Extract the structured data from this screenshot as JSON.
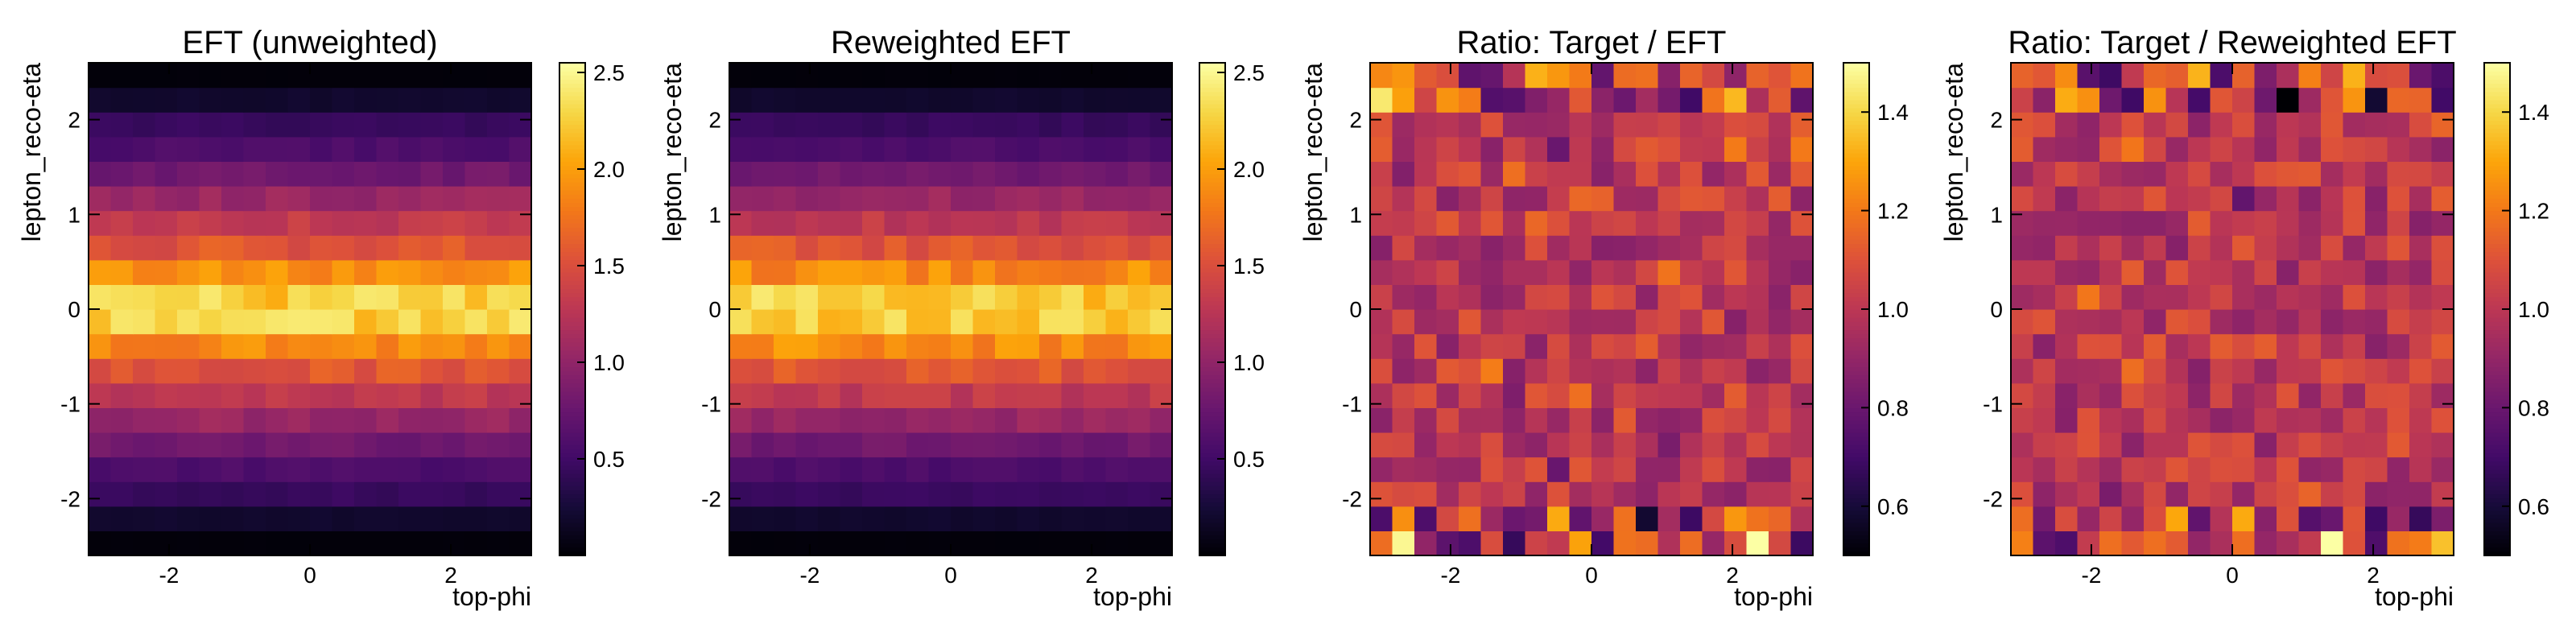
{
  "figure": {
    "layout": "1x4 heatmap panels"
  },
  "chart_data": [
    {
      "type": "heatmap",
      "title": "EFT (unweighted)",
      "xlabel": "top-phi",
      "ylabel": "lepton_reco-eta",
      "xlim": [
        -3.1416,
        3.1416
      ],
      "ylim": [
        -2.6,
        2.6
      ],
      "x_ticks": [
        "-2",
        "0",
        "2"
      ],
      "y_ticks": [
        "-2",
        "-1",
        "0",
        "1",
        "2"
      ],
      "colormap": "inferno",
      "colorbar_range": [
        0.0,
        2.55
      ],
      "colorbar_ticks": [
        "0.5",
        "1.0",
        "1.5",
        "2.0",
        "2.5"
      ],
      "nx": 20,
      "ny": 20,
      "profile_y": [
        0.03,
        0.2,
        0.45,
        0.58,
        0.8,
        1.05,
        1.3,
        1.55,
        1.9,
        2.25,
        2.25,
        1.9,
        1.55,
        1.3,
        1.05,
        0.8,
        0.58,
        0.45,
        0.2,
        0.03
      ]
    },
    {
      "type": "heatmap",
      "title": "Reweighted EFT",
      "xlabel": "top-phi",
      "ylabel": "lepton_reco-eta",
      "xlim": [
        -3.1416,
        3.1416
      ],
      "ylim": [
        -2.6,
        2.6
      ],
      "x_ticks": [
        "-2",
        "0",
        "2"
      ],
      "y_ticks": [
        "-2",
        "-1",
        "0",
        "1",
        "2"
      ],
      "colormap": "inferno",
      "colorbar_range": [
        0.0,
        2.55
      ],
      "colorbar_ticks": [
        "0.5",
        "1.0",
        "1.5",
        "2.0",
        "2.5"
      ],
      "nx": 20,
      "ny": 20,
      "profile_y": [
        0.03,
        0.2,
        0.45,
        0.58,
        0.8,
        1.05,
        1.3,
        1.55,
        1.9,
        2.25,
        2.25,
        1.9,
        1.55,
        1.3,
        1.05,
        0.8,
        0.58,
        0.45,
        0.2,
        0.03
      ]
    },
    {
      "type": "heatmap",
      "title": "Ratio: Target / EFT",
      "xlabel": "top-phi",
      "ylabel": "lepton_reco-eta",
      "xlim": [
        -3.1416,
        3.1416
      ],
      "ylim": [
        -2.6,
        2.6
      ],
      "x_ticks": [
        "-2",
        "0",
        "2"
      ],
      "y_ticks": [
        "-2",
        "-1",
        "0",
        "1",
        "2"
      ],
      "colormap": "inferno",
      "colorbar_range": [
        0.5,
        1.5
      ],
      "colorbar_ticks": [
        "0.6",
        "0.8",
        "1.0",
        "1.2",
        "1.4"
      ],
      "nx": 20,
      "ny": 20,
      "center_value": 1.0
    },
    {
      "type": "heatmap",
      "title": "Ratio: Target / Reweighted EFT",
      "xlabel": "top-phi",
      "ylabel": "lepton_reco-eta",
      "xlim": [
        -3.1416,
        3.1416
      ],
      "ylim": [
        -2.6,
        2.6
      ],
      "x_ticks": [
        "-2",
        "0",
        "2"
      ],
      "y_ticks": [
        "-2",
        "-1",
        "0",
        "1",
        "2"
      ],
      "colormap": "inferno",
      "colorbar_range": [
        0.5,
        1.5
      ],
      "colorbar_ticks": [
        "0.6",
        "0.8",
        "1.0",
        "1.2",
        "1.4"
      ],
      "nx": 20,
      "ny": 20,
      "center_value": 1.0
    }
  ]
}
